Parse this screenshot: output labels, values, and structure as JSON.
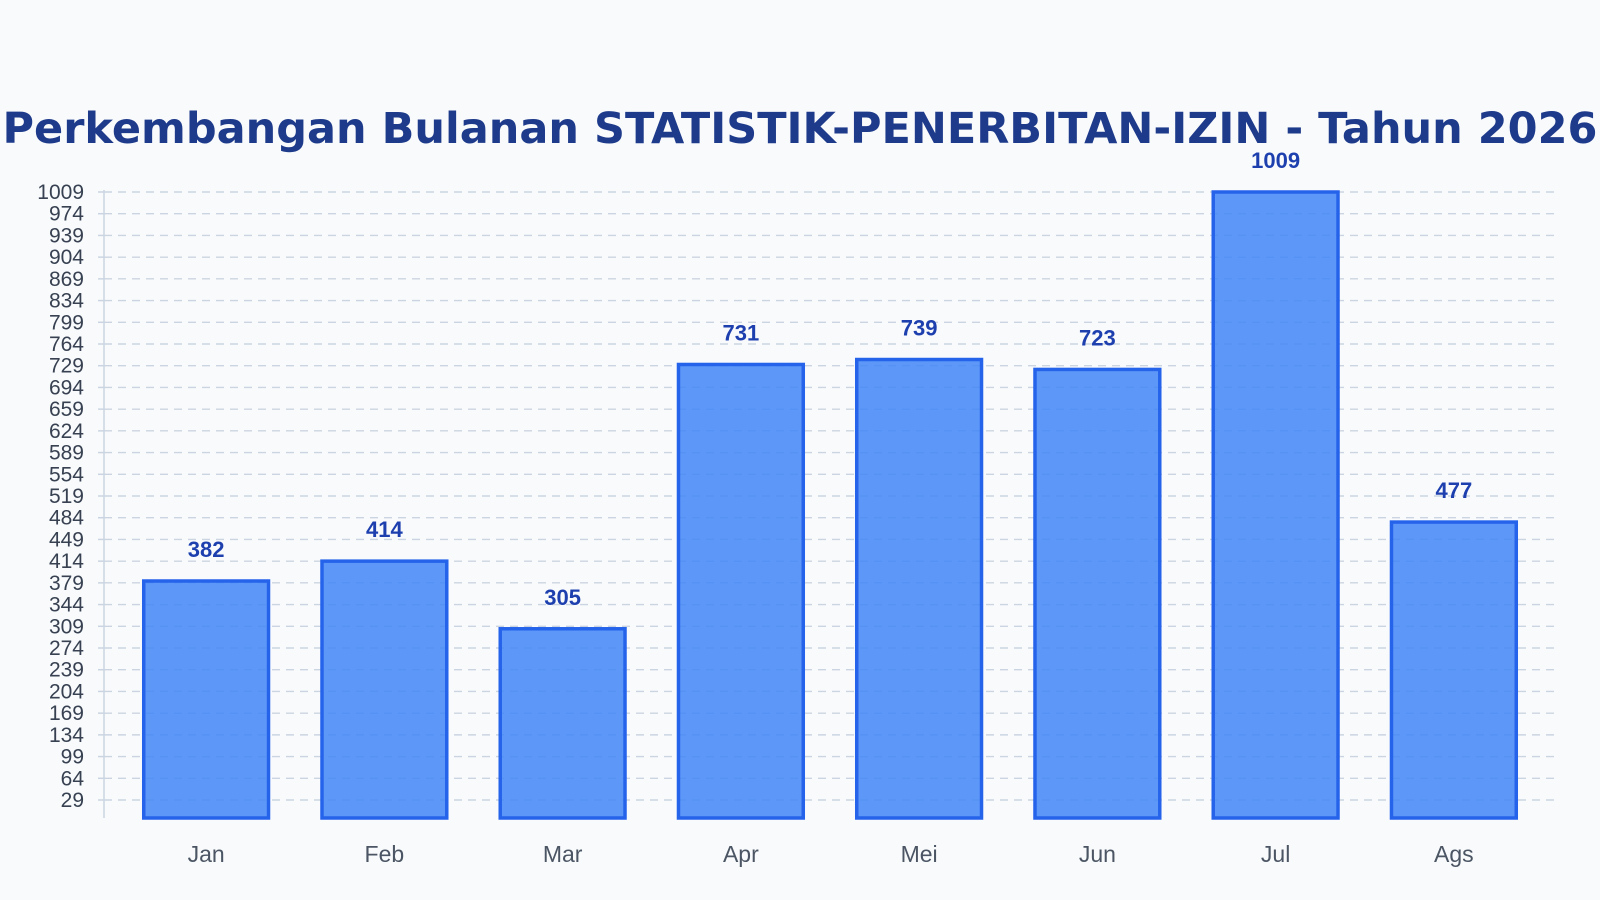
{
  "chart_data": {
    "type": "bar",
    "title": "Perkembangan Bulanan STATISTIK-PENERBITAN-IZIN - Tahun 2026",
    "categories": [
      "Jan",
      "Feb",
      "Mar",
      "Apr",
      "Mei",
      "Jun",
      "Jul",
      "Ags"
    ],
    "values": [
      382,
      414,
      305,
      731,
      739,
      723,
      1009,
      477
    ],
    "yticks": [
      29,
      64,
      99,
      134,
      169,
      204,
      239,
      274,
      309,
      344,
      379,
      414,
      449,
      484,
      519,
      554,
      589,
      624,
      659,
      694,
      729,
      764,
      799,
      834,
      869,
      904,
      939,
      974,
      1009
    ],
    "ylim": [
      0,
      1009
    ],
    "xlabel": "",
    "ylabel": "",
    "grid": true,
    "legend": "none",
    "colors": {
      "bar_fill": "#3b82f6",
      "bar_stroke": "#2563eb",
      "title": "#1e3a8a",
      "data_label": "#1e40af",
      "grid": "#cbd5e1",
      "background": "#f8fafc"
    }
  }
}
